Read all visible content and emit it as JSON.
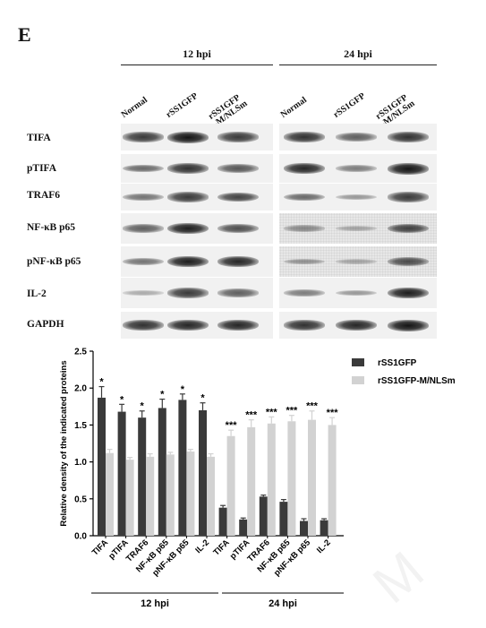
{
  "panel_letter": "E",
  "blot": {
    "groups": [
      {
        "label": "12 hpi",
        "lanes": [
          "Normal",
          "rSS1GFP",
          "rSS1GFP\n-M/NLSm"
        ]
      },
      {
        "label": "24 hpi",
        "lanes": [
          "Normal",
          "rSS1GFP",
          "rSS1GFP\n-M/NLSm"
        ]
      }
    ],
    "proteins": [
      "TIFA",
      "pTIFA",
      "TRAF6",
      "NF-κB p65",
      "pNF-κB p65",
      "IL-2",
      "GAPDH"
    ],
    "band_intensity": {
      "12 hpi": [
        [
          0.8,
          1.0,
          0.8
        ],
        [
          0.55,
          0.85,
          0.65
        ],
        [
          0.5,
          0.8,
          0.75
        ],
        [
          0.6,
          0.95,
          0.7
        ],
        [
          0.5,
          0.95,
          0.9
        ],
        [
          0.2,
          0.8,
          0.6
        ],
        [
          0.85,
          0.9,
          0.9
        ]
      ],
      "24 hpi": [
        [
          0.85,
          0.6,
          0.85
        ],
        [
          0.9,
          0.45,
          1.0
        ],
        [
          0.55,
          0.3,
          0.8
        ],
        [
          0.35,
          0.2,
          0.75
        ],
        [
          0.3,
          0.2,
          0.7
        ],
        [
          0.45,
          0.3,
          0.95
        ],
        [
          0.85,
          0.9,
          1.0
        ]
      ]
    }
  },
  "chart_data": {
    "type": "bar",
    "ylabel": "Relative density of the indicated proteins",
    "ylim": [
      0.0,
      2.5
    ],
    "yticks": [
      "0.0",
      "0.5",
      "1.0",
      "1.5",
      "2.0",
      "2.5"
    ],
    "groups": [
      {
        "label": "12 hpi",
        "categories": [
          "TIFA",
          "pTIFA",
          "TRAF6",
          "NF-κB p65",
          "pNF-κB p65",
          "IL-2"
        ],
        "series": [
          {
            "name": "rSS1GFP",
            "values": [
              1.87,
              1.68,
              1.6,
              1.73,
              1.84,
              1.7
            ],
            "errors": [
              0.15,
              0.1,
              0.09,
              0.12,
              0.08,
              0.1
            ]
          },
          {
            "name": "rSS1GFP-M/NLSm",
            "values": [
              1.12,
              1.03,
              1.07,
              1.1,
              1.14,
              1.07
            ],
            "errors": [
              0.05,
              0.03,
              0.04,
              0.03,
              0.03,
              0.04
            ]
          }
        ],
        "significance": [
          "*",
          "*",
          "*",
          "*",
          "*",
          "*"
        ]
      },
      {
        "label": "24 hpi",
        "categories": [
          "TIFA",
          "pTIFA",
          "TRAF6",
          "NF-κB p65",
          "pNF-κB p65",
          "IL-2"
        ],
        "series": [
          {
            "name": "rSS1GFP",
            "values": [
              0.38,
              0.22,
              0.53,
              0.46,
              0.2,
              0.21
            ],
            "errors": [
              0.03,
              0.02,
              0.02,
              0.03,
              0.03,
              0.02
            ]
          },
          {
            "name": "rSS1GFP-M/NLSm",
            "values": [
              1.35,
              1.47,
              1.52,
              1.55,
              1.57,
              1.5
            ],
            "errors": [
              0.08,
              0.1,
              0.09,
              0.08,
              0.12,
              0.1
            ]
          }
        ],
        "significance": [
          "***",
          "***",
          "***",
          "***",
          "***",
          "***"
        ]
      }
    ],
    "legend": {
      "placement": "right",
      "entries": [
        {
          "name": "rSS1GFP",
          "color": "#3a3a3a"
        },
        {
          "name": "rSS1GFP-M/NLSm",
          "color": "#d2d2d2"
        }
      ]
    },
    "colors": {
      "dark": "#3a3a3a",
      "light": "#d2d2d2"
    }
  }
}
